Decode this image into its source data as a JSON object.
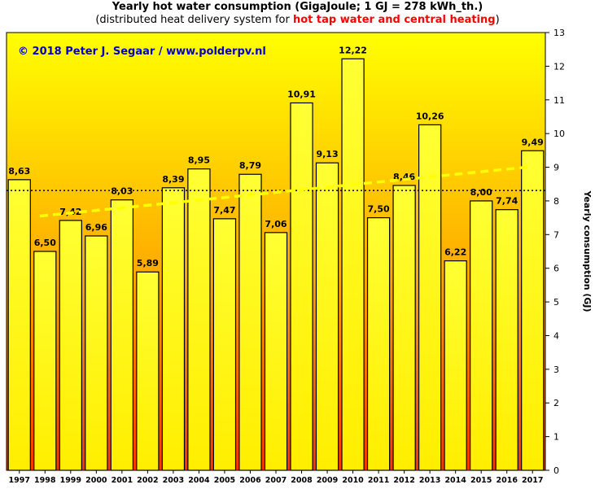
{
  "title": "Yearly hot water consumption (GigaJoule; 1 GJ = 278 kWh_th.)",
  "subtitle": {
    "prefix": "(distributed heat delivery system for ",
    "highlight": "hot tap water and central heating",
    "suffix": ")"
  },
  "copyright": "© 2018 Peter J. Segaar / www.polderpv.nl",
  "colors": {
    "bar_fill": "#ffee00",
    "bar_outline": "#000000",
    "background_top": "#ffff00",
    "background_bottom": "#ff3300",
    "trend_line": "#ffff00",
    "copyright_text": "#0000cc",
    "highlight_text": "#ff0000"
  },
  "chart_data": {
    "type": "bar",
    "categories": [
      "1997",
      "1998",
      "1999",
      "2000",
      "2001",
      "2002",
      "2003",
      "2004",
      "2005",
      "2006",
      "2007",
      "2008",
      "2009",
      "2010",
      "2011",
      "2012",
      "2013",
      "2014",
      "2015",
      "2016",
      "2017"
    ],
    "values": [
      8.63,
      6.5,
      7.42,
      6.96,
      8.03,
      5.89,
      8.39,
      8.95,
      7.47,
      8.79,
      7.06,
      10.91,
      9.13,
      12.22,
      7.5,
      8.46,
      10.26,
      6.22,
      8.0,
      7.74,
      9.49
    ],
    "value_labels": [
      "8,63",
      "6,50",
      "7,42",
      "6,96",
      "8,03",
      "5,89",
      "8,39",
      "8,95",
      "7,47",
      "8,79",
      "7,06",
      "10,91",
      "9,13",
      "12,22",
      "7,50",
      "8,46",
      "10,26",
      "6,22",
      "8,00",
      "7,74",
      "9,49"
    ],
    "ylabel": "Yearly consumption (GJ)",
    "ylim": [
      0,
      13
    ],
    "yticks": [
      0,
      1,
      2,
      3,
      4,
      5,
      6,
      7,
      8,
      9,
      10,
      11,
      12,
      13
    ],
    "y_axis_side": "right",
    "average_line": 8.31,
    "trend_line": {
      "start": 7.55,
      "end": 9.02
    },
    "grid": false,
    "legend": "none"
  }
}
